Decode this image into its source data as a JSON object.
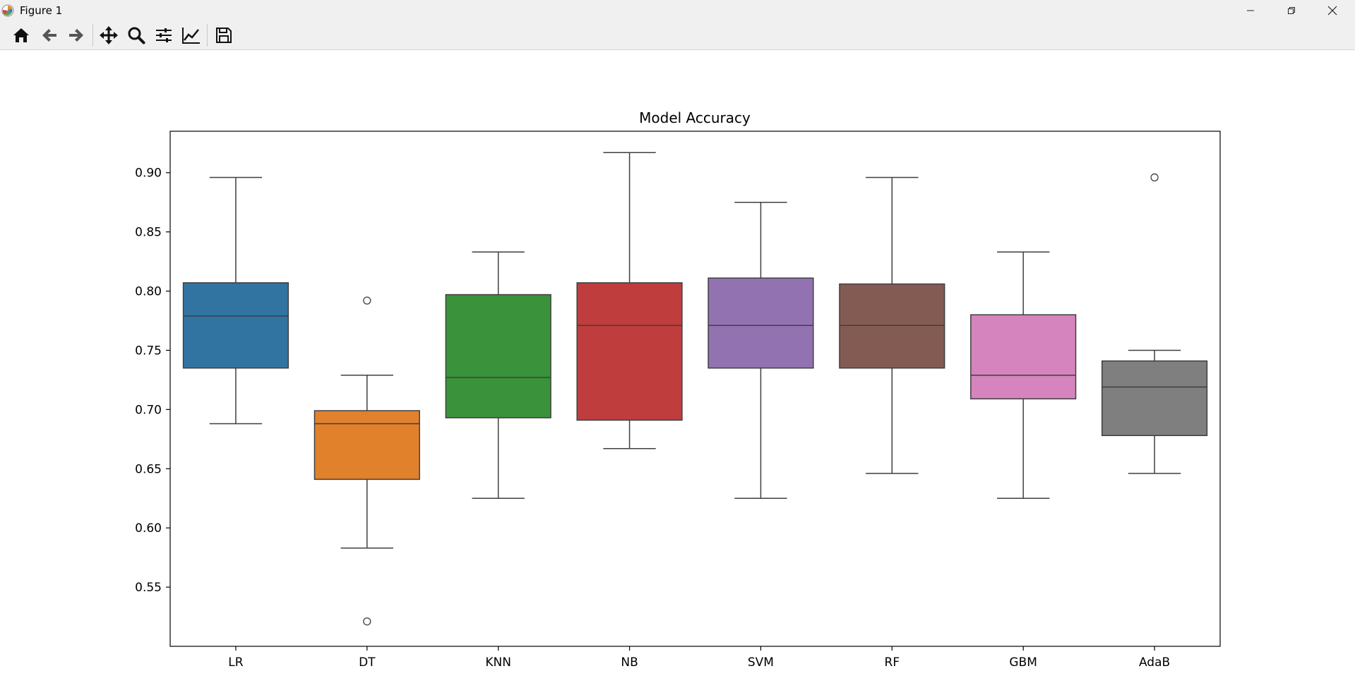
{
  "window": {
    "title": "Figure 1",
    "controls": [
      "minimize",
      "restore",
      "close"
    ]
  },
  "toolbar": {
    "tools": [
      {
        "name": "home",
        "icon": "home-icon"
      },
      {
        "name": "back",
        "icon": "arrow-left-icon"
      },
      {
        "name": "forward",
        "icon": "arrow-right-icon"
      },
      {
        "name": "pan",
        "icon": "move-icon"
      },
      {
        "name": "zoom",
        "icon": "magnifier-icon"
      },
      {
        "name": "configure-subplots",
        "icon": "sliders-icon"
      },
      {
        "name": "edit-axis",
        "icon": "line-chart-icon"
      },
      {
        "name": "save",
        "icon": "floppy-icon"
      }
    ]
  },
  "chart_data": {
    "type": "box",
    "title": "Model Accuracy",
    "xlabel": "",
    "ylabel": "",
    "ylim": [
      0.5,
      0.935
    ],
    "yticks": [
      0.55,
      0.6,
      0.65,
      0.7,
      0.75,
      0.8,
      0.85,
      0.9
    ],
    "ytick_labels": [
      "0.55",
      "0.60",
      "0.65",
      "0.70",
      "0.75",
      "0.80",
      "0.85",
      "0.90"
    ],
    "grid": false,
    "categories": [
      "LR",
      "DT",
      "KNN",
      "NB",
      "SVM",
      "RF",
      "GBM",
      "AdaB"
    ],
    "boxes": [
      {
        "name": "LR",
        "color": "#3274a1",
        "whisker_low": 0.688,
        "q1": 0.735,
        "median": 0.779,
        "q3": 0.807,
        "whisker_high": 0.896,
        "outliers": []
      },
      {
        "name": "DT",
        "color": "#e1812c",
        "whisker_low": 0.583,
        "q1": 0.641,
        "median": 0.688,
        "q3": 0.699,
        "whisker_high": 0.729,
        "outliers": [
          0.792,
          0.521
        ]
      },
      {
        "name": "KNN",
        "color": "#3a923a",
        "whisker_low": 0.625,
        "q1": 0.693,
        "median": 0.727,
        "q3": 0.797,
        "whisker_high": 0.833,
        "outliers": []
      },
      {
        "name": "NB",
        "color": "#c03d3e",
        "whisker_low": 0.667,
        "q1": 0.691,
        "median": 0.771,
        "q3": 0.807,
        "whisker_high": 0.917,
        "outliers": []
      },
      {
        "name": "SVM",
        "color": "#9372b2",
        "whisker_low": 0.625,
        "q1": 0.735,
        "median": 0.771,
        "q3": 0.811,
        "whisker_high": 0.875,
        "outliers": []
      },
      {
        "name": "RF",
        "color": "#845b53",
        "whisker_low": 0.646,
        "q1": 0.735,
        "median": 0.771,
        "q3": 0.806,
        "whisker_high": 0.896,
        "outliers": []
      },
      {
        "name": "GBM",
        "color": "#d684bd",
        "whisker_low": 0.625,
        "q1": 0.709,
        "median": 0.729,
        "q3": 0.78,
        "whisker_high": 0.833,
        "outliers": []
      },
      {
        "name": "AdaB",
        "color": "#7f7f7f",
        "whisker_low": 0.646,
        "q1": 0.678,
        "median": 0.719,
        "q3": 0.741,
        "whisker_high": 0.75,
        "outliers": [
          0.896
        ]
      }
    ]
  }
}
